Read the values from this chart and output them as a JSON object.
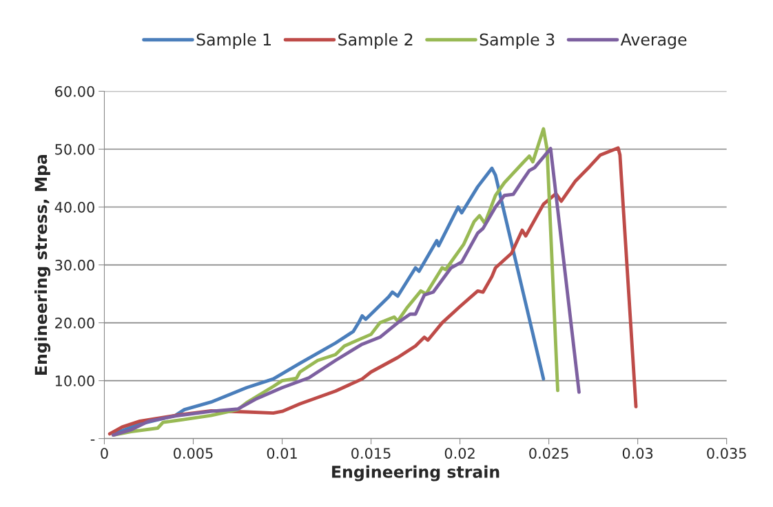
{
  "chart_data": {
    "type": "line",
    "xlabel": "Engineering strain",
    "ylabel": "Engineering stress, Mpa",
    "xlim": [
      0,
      0.035
    ],
    "xticks": [
      0,
      0.005,
      0.01,
      0.015,
      0.02,
      0.025,
      0.03,
      0.035
    ],
    "ylim": [
      0,
      60
    ],
    "yticks": [
      {
        "value": 0,
        "label": "-"
      },
      {
        "value": 10,
        "label": "10.00"
      },
      {
        "value": 20,
        "label": "20.00"
      },
      {
        "value": 30,
        "label": "30.00"
      },
      {
        "value": 40,
        "label": "40.00"
      },
      {
        "value": 50,
        "label": "50.00"
      },
      {
        "value": 60,
        "label": "60.00"
      }
    ],
    "grid": "y",
    "legend": "top",
    "marker": "none",
    "line_style": "solid",
    "series": [
      {
        "name": "Sample 1",
        "color": "#4a7ebb",
        "x": [
          0.0005,
          0.002,
          0.004,
          0.0045,
          0.006,
          0.008,
          0.0095,
          0.011,
          0.013,
          0.014,
          0.0143,
          0.0145,
          0.0147,
          0.016,
          0.0162,
          0.0165,
          0.0175,
          0.0177,
          0.0187,
          0.0188,
          0.0199,
          0.0201,
          0.021,
          0.0218,
          0.022,
          0.0247
        ],
        "values": [
          0.8,
          2.5,
          4,
          5,
          6.3,
          8.8,
          10.3,
          13,
          16.5,
          18.5,
          20,
          21.2,
          20.6,
          24.5,
          25.3,
          24.6,
          29.5,
          28.9,
          34.2,
          33.3,
          40,
          39,
          43.5,
          46.7,
          45.5,
          10.3
        ]
      },
      {
        "name": "Sample 2",
        "color": "#be4b48",
        "x": [
          0.0003,
          0.001,
          0.002,
          0.004,
          0.006,
          0.008,
          0.0095,
          0.01,
          0.011,
          0.013,
          0.0145,
          0.015,
          0.0165,
          0.0175,
          0.018,
          0.0182,
          0.019,
          0.02,
          0.021,
          0.0213,
          0.0218,
          0.022,
          0.0229,
          0.0235,
          0.0237,
          0.0247,
          0.0254,
          0.0257,
          0.0265,
          0.0273,
          0.0279,
          0.0289,
          0.029,
          0.0299
        ],
        "values": [
          0.8,
          2,
          3,
          4,
          4.8,
          4.6,
          4.4,
          4.7,
          6,
          8.2,
          10.3,
          11.5,
          14,
          16,
          17.5,
          17,
          20,
          22.8,
          25.5,
          25.3,
          28,
          29.5,
          32,
          36,
          35,
          40.5,
          42.3,
          41,
          44.5,
          47,
          49,
          50.2,
          49,
          5.5
        ]
      },
      {
        "name": "Sample 3",
        "color": "#98b954",
        "x": [
          0.0005,
          0.0015,
          0.003,
          0.0033,
          0.0045,
          0.006,
          0.0075,
          0.008,
          0.0095,
          0.01,
          0.0108,
          0.011,
          0.012,
          0.013,
          0.0135,
          0.015,
          0.0155,
          0.0163,
          0.0165,
          0.017,
          0.0178,
          0.0181,
          0.019,
          0.0192,
          0.0202,
          0.0208,
          0.0211,
          0.0214,
          0.022,
          0.0225,
          0.0235,
          0.0239,
          0.0241,
          0.0247,
          0.0249,
          0.0255
        ],
        "values": [
          0.6,
          1.2,
          1.8,
          2.8,
          3.3,
          4,
          5,
          6.2,
          9,
          10,
          10.4,
          11.5,
          13.5,
          14.5,
          16,
          18,
          20,
          21,
          20.3,
          22.5,
          25.5,
          25,
          29.5,
          29.2,
          33.5,
          37.5,
          38.5,
          37.2,
          42,
          44.2,
          47.5,
          48.8,
          47.8,
          53.5,
          50,
          8.3
        ]
      },
      {
        "name": "Average",
        "color": "#7d60a0",
        "x": [
          0.0005,
          0.0015,
          0.0025,
          0.004,
          0.006,
          0.0075,
          0.0085,
          0.01,
          0.0115,
          0.013,
          0.0145,
          0.0155,
          0.0165,
          0.0172,
          0.0175,
          0.018,
          0.0185,
          0.0195,
          0.0201,
          0.021,
          0.0213,
          0.022,
          0.0225,
          0.023,
          0.0235,
          0.0239,
          0.0242,
          0.0251,
          0.0267
        ],
        "values": [
          0.6,
          1.5,
          3,
          3.9,
          4.7,
          5.1,
          6.8,
          8.8,
          10.5,
          13.5,
          16.3,
          17.5,
          20,
          21.5,
          21.5,
          24.8,
          25.3,
          29.5,
          30.5,
          35.5,
          36.3,
          40,
          42,
          42.2,
          44.5,
          46.3,
          46.8,
          50.1,
          8
        ]
      }
    ]
  }
}
